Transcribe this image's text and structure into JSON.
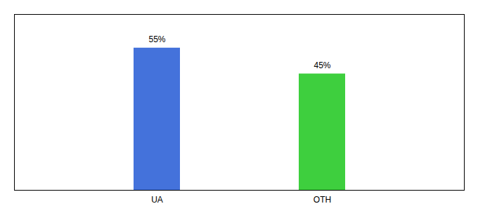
{
  "chart_data": {
    "type": "bar",
    "categories": [
      "UA",
      "OTH"
    ],
    "values": [
      55,
      45
    ],
    "value_labels": [
      "55%",
      "45%"
    ],
    "colors": [
      "#4472db",
      "#3ecf3e"
    ],
    "ylim": [
      0,
      68
    ],
    "data_labels": true,
    "tick_labels": "x"
  }
}
